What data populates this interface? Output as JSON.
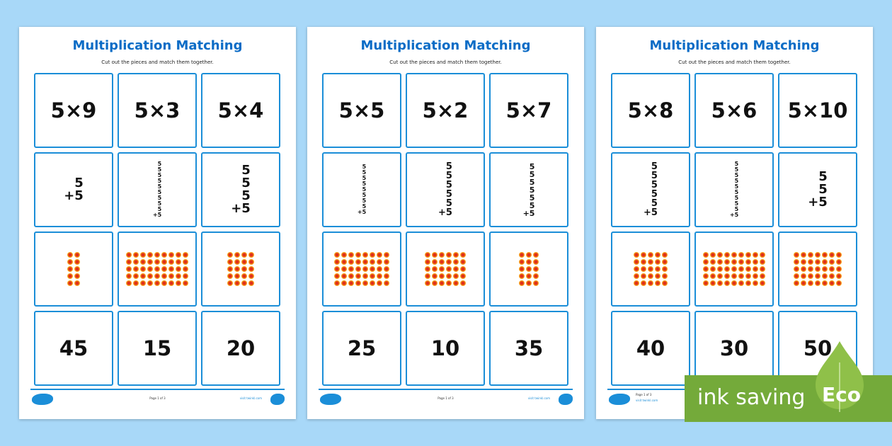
{
  "worksheet": {
    "title": "Multiplication Matching",
    "subtitle": "Cut out the pieces and match them together.",
    "accent": "#1b8ed8",
    "title_color": "#0b6cc6",
    "footer_page_label": "Page 1 of 3",
    "footer_url": "visit twinkl.com"
  },
  "pages": [
    {
      "facts": [
        "5×9",
        "5×3",
        "5×4"
      ],
      "addition_counts": [
        2,
        10,
        4
      ],
      "dot_columns": [
        2,
        9,
        4
      ],
      "answers": [
        "45",
        "15",
        "20"
      ]
    },
    {
      "facts": [
        "5×5",
        "5×2",
        "5×7"
      ],
      "addition_counts": [
        9,
        6,
        7
      ],
      "dot_columns": [
        8,
        6,
        3
      ],
      "answers": [
        "25",
        "10",
        "35"
      ]
    },
    {
      "facts": [
        "5×8",
        "5×6",
        "5×10"
      ],
      "addition_counts": [
        6,
        10,
        3
      ],
      "dot_columns": [
        5,
        9,
        7
      ],
      "answers": [
        "40",
        "30",
        "50"
      ]
    }
  ],
  "dot_rows": 5,
  "badge": {
    "text": "ink saving",
    "eco": "Eco",
    "color": "#74aa3a",
    "leaf_color": "#8fc049"
  }
}
